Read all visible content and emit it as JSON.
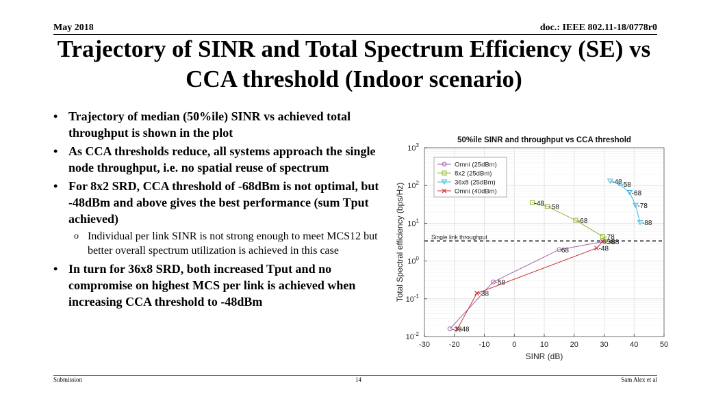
{
  "header": {
    "date": "May 2018",
    "doc": "doc.: IEEE 802.11-18/0778r0"
  },
  "title": "Trajectory of SINR and Total Spectrum Efficiency (SE) vs CCA threshold (Indoor scenario)",
  "bullets": [
    "Trajectory of median (50%ile) SINR vs achieved total throughput is shown in the plot",
    "As CCA thresholds reduce, all systems approach the single node throughput, i.e. no spatial reuse of spectrum",
    "For 8x2 SRD, CCA threshold of -68dBm is not optimal, but -48dBm and above gives the best performance (sum Tput achieved)",
    "In turn for 36x8 SRD, both increased Tput and no compromise on highest MCS per link is achieved when increasing CCA threshold to -48dBm"
  ],
  "bullet_mark": "•",
  "sub_mark": "o",
  "sub_bullet": "Individual per link SINR is not strong enough to meet MCS12 but better overall spectrum utilization is achieved in this case",
  "footer": {
    "left": "Submission",
    "page": "14",
    "right": "Sam Alex et al"
  },
  "chart_data": {
    "type": "line",
    "title": "50%ile SINR and throughput vs CCA threshold",
    "xlabel": "SINR (dB)",
    "ylabel": "Total Spectral efficiency (bps/Hz)",
    "xlim": [
      -30,
      50
    ],
    "ylim": [
      0.01,
      1000
    ],
    "yscale": "log",
    "xticks": [
      -30,
      -20,
      -10,
      0,
      10,
      20,
      30,
      40,
      50
    ],
    "xtick_labels": [
      "-30",
      "-20",
      "-10",
      "0",
      "10",
      "20",
      "30",
      "40",
      "50"
    ],
    "yticks": [
      0.01,
      0.1,
      1,
      10,
      100,
      1000
    ],
    "ytick_labels": [
      [
        "10",
        "-2"
      ],
      [
        "10",
        "-1"
      ],
      [
        "10",
        "0"
      ],
      [
        "10",
        "1"
      ],
      [
        "10",
        "2"
      ],
      [
        "10",
        "3"
      ]
    ],
    "grid": true,
    "legend_position": "top-left",
    "reference_line": {
      "label": "Single link throughput",
      "y": 3.4,
      "style": "dashed"
    },
    "series": [
      {
        "name": "Omni (25dBm)",
        "color": "#a066a8",
        "marker": "circle",
        "points": [
          {
            "x": -21.5,
            "y": 0.016,
            "label": "-38"
          },
          {
            "x": -7,
            "y": 0.28,
            "label": "-58"
          },
          {
            "x": 15,
            "y": 2.0,
            "label": "68"
          },
          {
            "x": 30,
            "y": 3.3,
            "label": ""
          }
        ]
      },
      {
        "name": "8x2 (25dBm)",
        "color": "#8fb82e",
        "marker": "square",
        "points": [
          {
            "x": 6,
            "y": 35,
            "label": "-48"
          },
          {
            "x": 11,
            "y": 28,
            "label": "-58"
          },
          {
            "x": 20.5,
            "y": 12,
            "label": "-68"
          },
          {
            "x": 29.5,
            "y": 4.5,
            "label": "-78"
          },
          {
            "x": 31,
            "y": 3.3,
            "label": "-88"
          }
        ]
      },
      {
        "name": "36x8 (25dBm)",
        "color": "#3fb6e3",
        "marker": "triangle-down",
        "points": [
          {
            "x": 32,
            "y": 130,
            "label": "-48"
          },
          {
            "x": 35,
            "y": 110,
            "label": "-58"
          },
          {
            "x": 38.5,
            "y": 65,
            "label": "-68"
          },
          {
            "x": 40.5,
            "y": 30,
            "label": "-78"
          },
          {
            "x": 42,
            "y": 10.5,
            "label": "-88"
          }
        ]
      },
      {
        "name": "Omni (40dBm)",
        "color": "#c8323c",
        "marker": "x",
        "points": [
          {
            "x": -19,
            "y": 0.016,
            "label": "-48"
          },
          {
            "x": -12.5,
            "y": 0.14,
            "label": "-38"
          },
          {
            "x": 27.5,
            "y": 2.2,
            "label": "-48"
          },
          {
            "x": 29.5,
            "y": 3.3,
            "label": "-58"
          }
        ]
      }
    ]
  }
}
